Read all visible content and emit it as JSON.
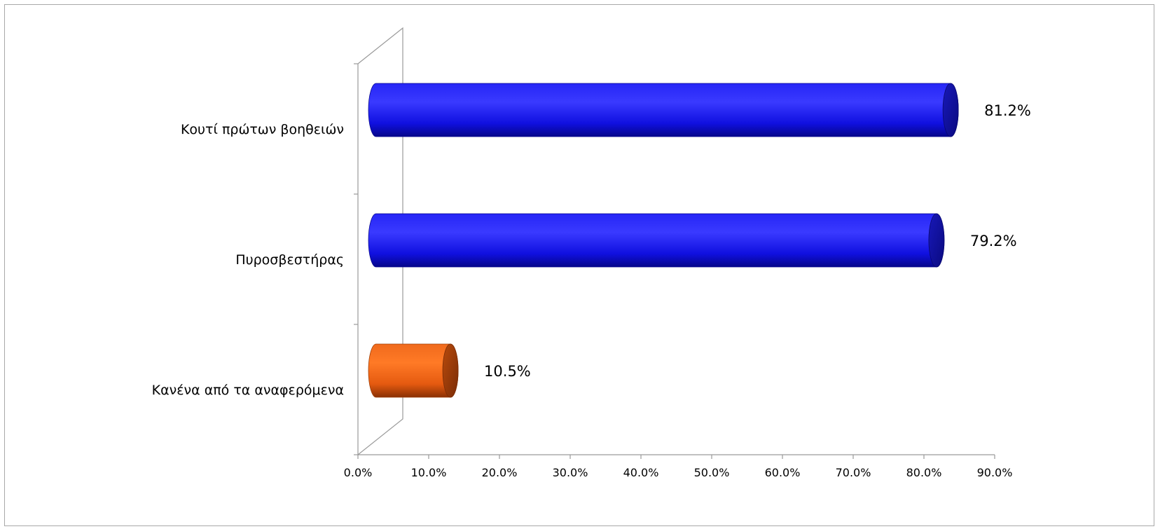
{
  "chart_data": {
    "type": "bar",
    "orientation": "horizontal",
    "style": "3d-cylinder",
    "categories": [
      "Κουτί πρώτων βοηθειών",
      "Πυροσβεστήρας",
      "Κανένα από τα αναφερόμενα"
    ],
    "values": [
      81.2,
      79.2,
      10.5
    ],
    "value_labels": [
      "81.2%",
      "79.2%",
      "10.5%"
    ],
    "bar_colors": [
      "#1010ee",
      "#1010ee",
      "#ee5c10"
    ],
    "title": "",
    "xlabel": "",
    "ylabel": "",
    "xlim": [
      0,
      90
    ],
    "x_ticks": [
      0,
      10,
      20,
      30,
      40,
      50,
      60,
      70,
      80,
      90
    ],
    "x_tick_labels": [
      "0.0%",
      "10.0%",
      "20.0%",
      "30.0%",
      "40.0%",
      "50.0%",
      "60.0%",
      "70.0%",
      "80.0%",
      "90.0%"
    ],
    "grid": false,
    "legend": "none"
  }
}
